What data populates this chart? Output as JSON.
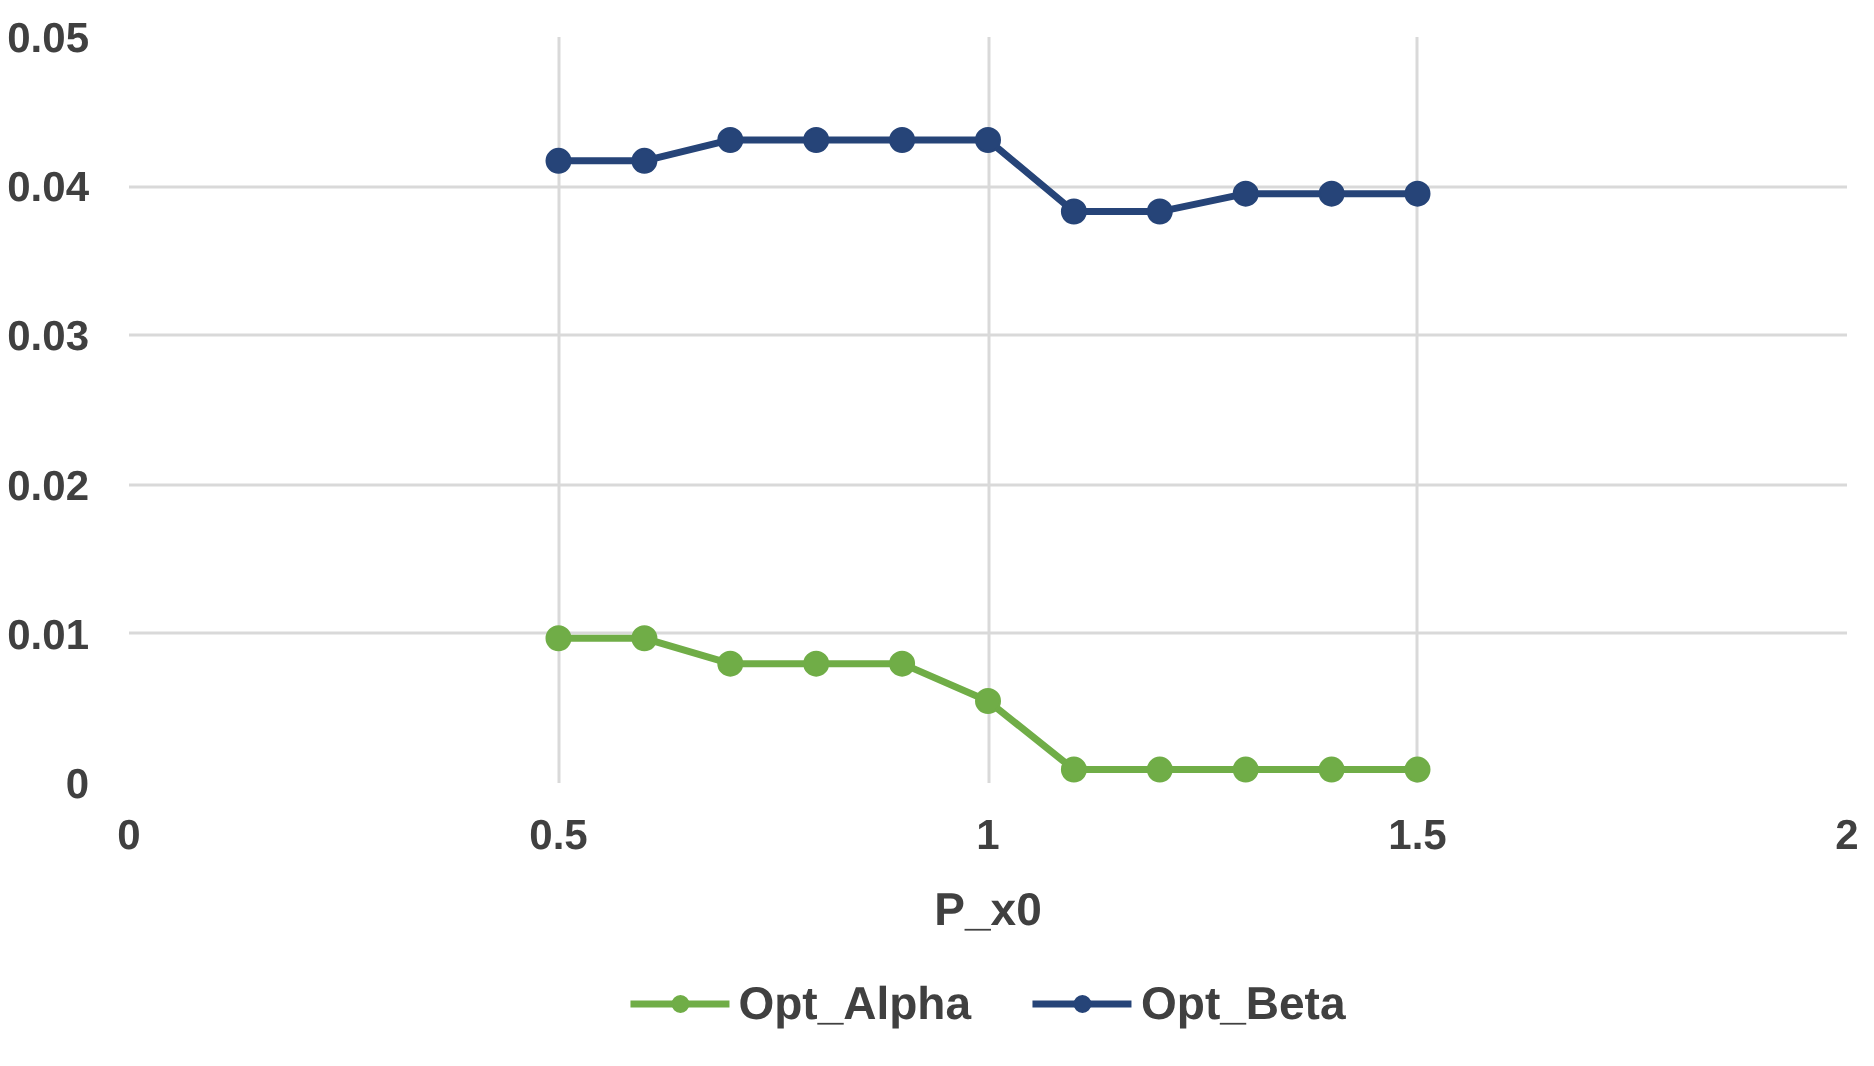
{
  "chart_data": {
    "type": "line",
    "xlabel": "P_x0",
    "x": [
      0.5,
      0.6,
      0.7,
      0.8,
      0.9,
      1.0,
      1.1,
      1.2,
      1.3,
      1.4,
      1.5
    ],
    "series": [
      {
        "name": "Opt_Alpha",
        "color": "#70ad47",
        "values": [
          0.0097,
          0.0097,
          0.008,
          0.008,
          0.008,
          0.0055,
          0.0009,
          0.0009,
          0.0009,
          0.0009,
          0.0009
        ]
      },
      {
        "name": "Opt_Beta",
        "color": "#264478",
        "values": [
          0.0417,
          0.0417,
          0.0431,
          0.0431,
          0.0431,
          0.0431,
          0.0383,
          0.0383,
          0.0395,
          0.0395,
          0.0395
        ]
      }
    ],
    "xlim": [
      0,
      2
    ],
    "xticks": [
      0,
      0.5,
      1,
      1.5,
      2
    ],
    "ylim": [
      0,
      0.05
    ],
    "yticks": [
      0,
      0.01,
      0.02,
      0.03,
      0.04,
      0.05
    ],
    "grid": true,
    "legend": "bottom",
    "marker": "circle",
    "line_style": "solid"
  }
}
